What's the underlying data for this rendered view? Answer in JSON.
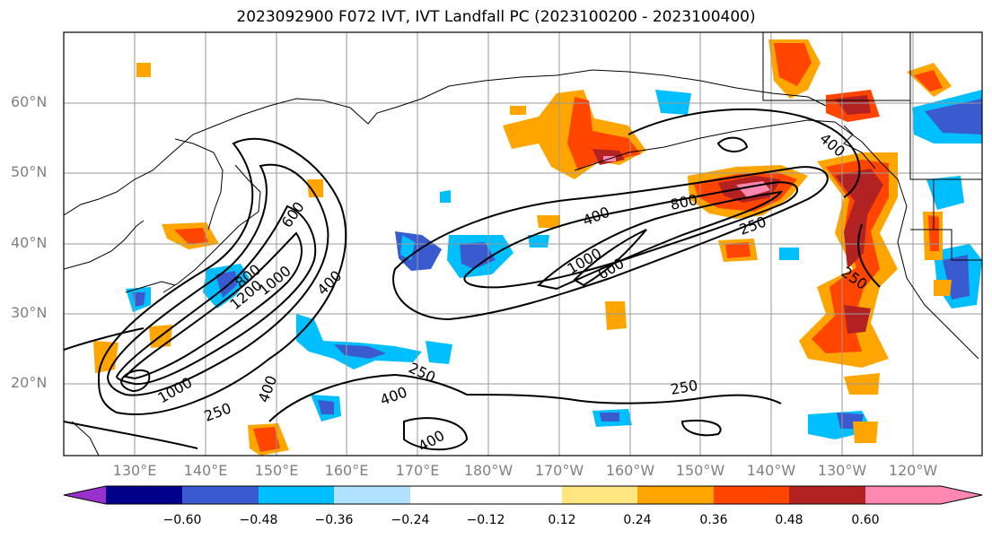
{
  "title": "2023092900 F072 IVT, IVT Landfall PC (2023100200 - 2023100400)",
  "lat_labels": [
    "60°N",
    "50°N",
    "40°N",
    "30°N",
    "20°N"
  ],
  "lon_labels": [
    "130°E",
    "140°E",
    "150°E",
    "160°E",
    "170°E",
    "180°W",
    "170°W",
    "160°W",
    "150°W",
    "140°W",
    "130°W",
    "120°W"
  ],
  "contour_labels": [
    "1000",
    "250",
    "400",
    "1200",
    "600",
    "800",
    "1000",
    "400",
    "250",
    "400",
    "400",
    "800",
    "400",
    "250",
    "1000",
    "600",
    "250",
    "250",
    "400"
  ],
  "colorbar": {
    "labels": [
      "−0.60",
      "−0.48",
      "−0.36",
      "−0.24",
      "−0.12",
      "0.12",
      "0.24",
      "0.36",
      "0.48",
      "0.60"
    ],
    "colors": [
      "#9932cc",
      "#00008b",
      "#3a5bcf",
      "#00bfff",
      "#b0e2ff",
      "#ffffff",
      "#ffffff",
      "#ffe680",
      "#ffa500",
      "#ff4500",
      "#b22222",
      "#ff88b0"
    ]
  }
}
